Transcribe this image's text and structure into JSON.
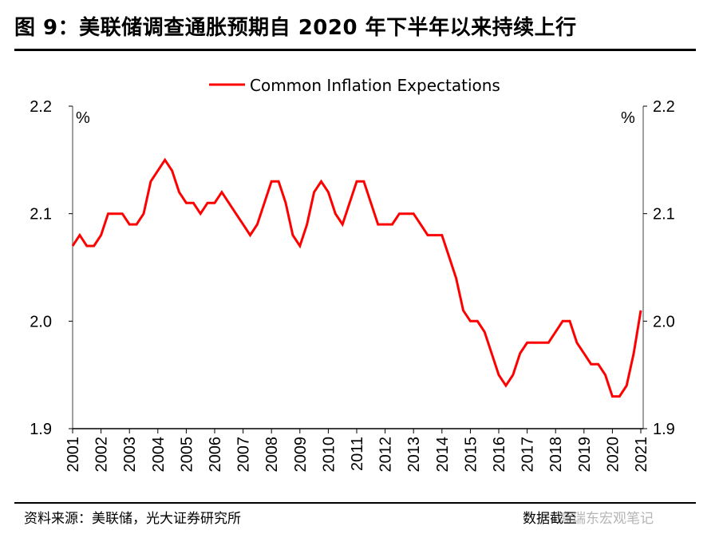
{
  "title": "图 9：美联储调查通胀预期自 2020 年下半年以来持续上行",
  "footer": {
    "source": "资料来源：美联储，光大证券研究所",
    "note": "数据截至",
    "watermark": "高瑞东宏观笔记"
  },
  "chart_data": {
    "type": "line",
    "title": "",
    "xlabel": "",
    "ylabel_left": "%",
    "ylabel_right": "%",
    "ylim": [
      1.9,
      2.2
    ],
    "yticks": [
      "1.9",
      "2.0",
      "2.1",
      "2.2"
    ],
    "ytick_values": [
      1.9,
      2.0,
      2.1,
      2.2
    ],
    "xlim": [
      2001,
      2021
    ],
    "xtick_labels": [
      "2001",
      "2002",
      "2003",
      "2004",
      "2005",
      "2006",
      "2007",
      "2008",
      "2009",
      "2010",
      "2011",
      "2012",
      "2013",
      "2014",
      "2015",
      "2016",
      "2017",
      "2018",
      "2019",
      "2020",
      "2021"
    ],
    "frequency": "quarterly",
    "x_start": "2001Q1",
    "grid": false,
    "legend_position": "top-center",
    "series": [
      {
        "name": "Common Inflation Expectations",
        "color": "#ff0000",
        "values": [
          2.07,
          2.08,
          2.07,
          2.07,
          2.08,
          2.1,
          2.1,
          2.1,
          2.09,
          2.09,
          2.1,
          2.13,
          2.14,
          2.15,
          2.14,
          2.12,
          2.11,
          2.11,
          2.1,
          2.11,
          2.11,
          2.12,
          2.11,
          2.1,
          2.09,
          2.08,
          2.09,
          2.11,
          2.13,
          2.13,
          2.11,
          2.08,
          2.07,
          2.09,
          2.12,
          2.13,
          2.12,
          2.1,
          2.09,
          2.11,
          2.13,
          2.13,
          2.11,
          2.09,
          2.09,
          2.09,
          2.1,
          2.1,
          2.1,
          2.09,
          2.08,
          2.08,
          2.08,
          2.06,
          2.04,
          2.01,
          2.0,
          2.0,
          1.99,
          1.97,
          1.95,
          1.94,
          1.95,
          1.97,
          1.98,
          1.98,
          1.98,
          1.98,
          1.99,
          2.0,
          2.0,
          1.98,
          1.97,
          1.96,
          1.96,
          1.95,
          1.93,
          1.93,
          1.94,
          1.97,
          2.01
        ]
      }
    ]
  }
}
